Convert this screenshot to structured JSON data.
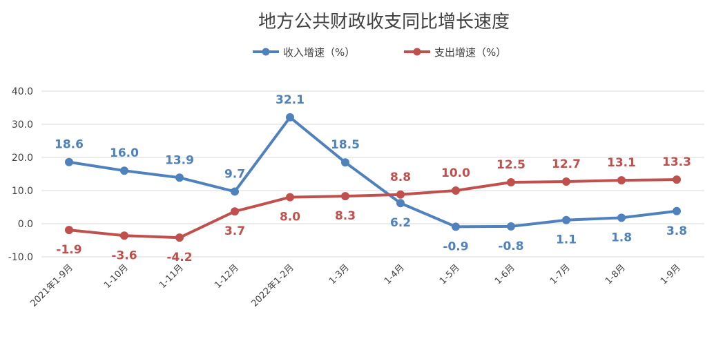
{
  "chart_data": {
    "type": "line",
    "title": "地方公共财政收支同比增长速度",
    "categories": [
      "2021年1-9月",
      "1-10月",
      "1-11月",
      "1-12月",
      "2022年1-2月",
      "1-3月",
      "1-4月",
      "1-5月",
      "1-6月",
      "1-7月",
      "1-8月",
      "1-9月"
    ],
    "ylim": [
      -10,
      40
    ],
    "yticks": [
      "-10.0",
      "0.0",
      "10.0",
      "20.0",
      "30.0",
      "40.0"
    ],
    "grid": true,
    "legend_position": "top-center",
    "series": [
      {
        "name": "收入增速（%）",
        "color": "#4f81bd",
        "values": [
          18.6,
          16.0,
          13.9,
          9.7,
          32.1,
          18.5,
          6.2,
          -0.9,
          -0.8,
          1.1,
          1.8,
          3.8
        ],
        "labels": [
          "18.6",
          "16.0",
          "13.9",
          "9.7",
          "32.1",
          "18.5",
          "6.2",
          "-0.9",
          "-0.8",
          "1.1",
          "1.8",
          "3.8"
        ]
      },
      {
        "name": "支出增速（%）",
        "color": "#c0504d",
        "values": [
          -1.9,
          -3.6,
          -4.2,
          3.7,
          8.0,
          8.3,
          8.8,
          10.0,
          12.5,
          12.7,
          13.1,
          13.3
        ],
        "labels": [
          "-1.9",
          "-3.6",
          "-4.2",
          "3.7",
          "8.0",
          "8.3",
          "8.8",
          "10.0",
          "12.5",
          "12.7",
          "13.1",
          "13.3"
        ]
      }
    ]
  }
}
